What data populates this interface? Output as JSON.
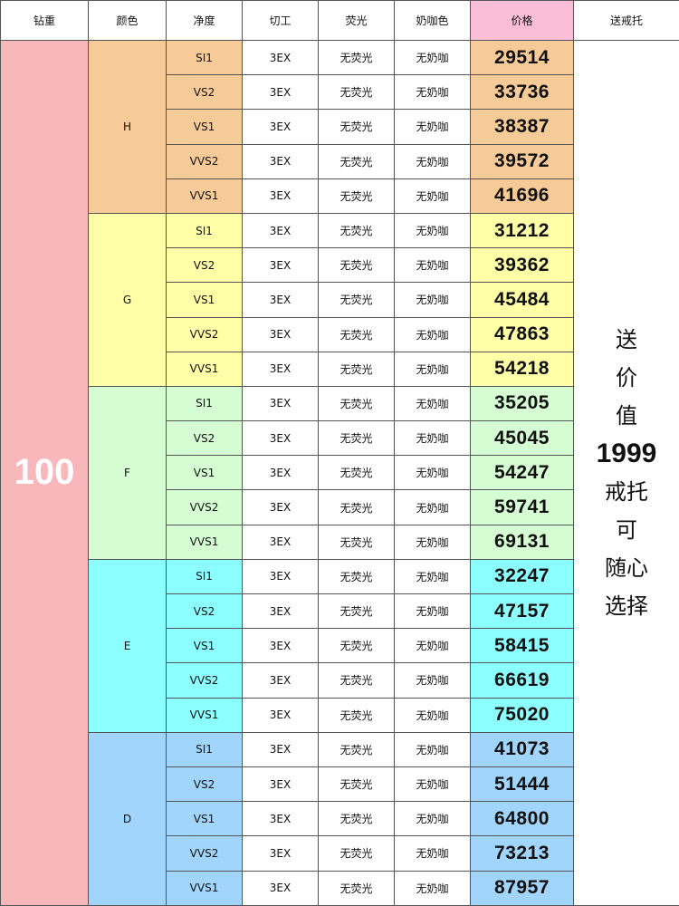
{
  "headers": [
    "钻重",
    "颜色",
    "净度",
    "切工",
    "荧光",
    "奶咖色",
    "价格",
    "送戒托"
  ],
  "colors": {
    "weight_bg": "#f8b7bb",
    "price_header_bg": "#f9bdd8"
  },
  "weight": "100",
  "clarities": [
    "SI1",
    "VS2",
    "VS1",
    "VVS2",
    "VVS1"
  ],
  "cut": "3EX",
  "fluorescence": "无荧光",
  "milky": "无奶咖",
  "groups": [
    {
      "color": "H",
      "bg": "#f7cb98",
      "prices": [
        "29514",
        "33736",
        "38387",
        "39572",
        "41696"
      ]
    },
    {
      "color": "G",
      "bg": "#ffffa8",
      "prices": [
        "31212",
        "39362",
        "45484",
        "47863",
        "54218"
      ]
    },
    {
      "color": "F",
      "bg": "#d5fcd3",
      "prices": [
        "35205",
        "45045",
        "54247",
        "59741",
        "69131"
      ]
    },
    {
      "color": "E",
      "bg": "#8cffff",
      "prices": [
        "32247",
        "47157",
        "58415",
        "66619",
        "75020"
      ]
    },
    {
      "color": "D",
      "bg": "#a2d5fb",
      "prices": [
        "41073",
        "51444",
        "64800",
        "73213",
        "87957"
      ]
    }
  ],
  "promo": {
    "lines_top": [
      "送",
      "价",
      "值"
    ],
    "value": "1999",
    "lines_bottom": [
      "戒托",
      "可",
      "随心",
      "选择"
    ]
  }
}
